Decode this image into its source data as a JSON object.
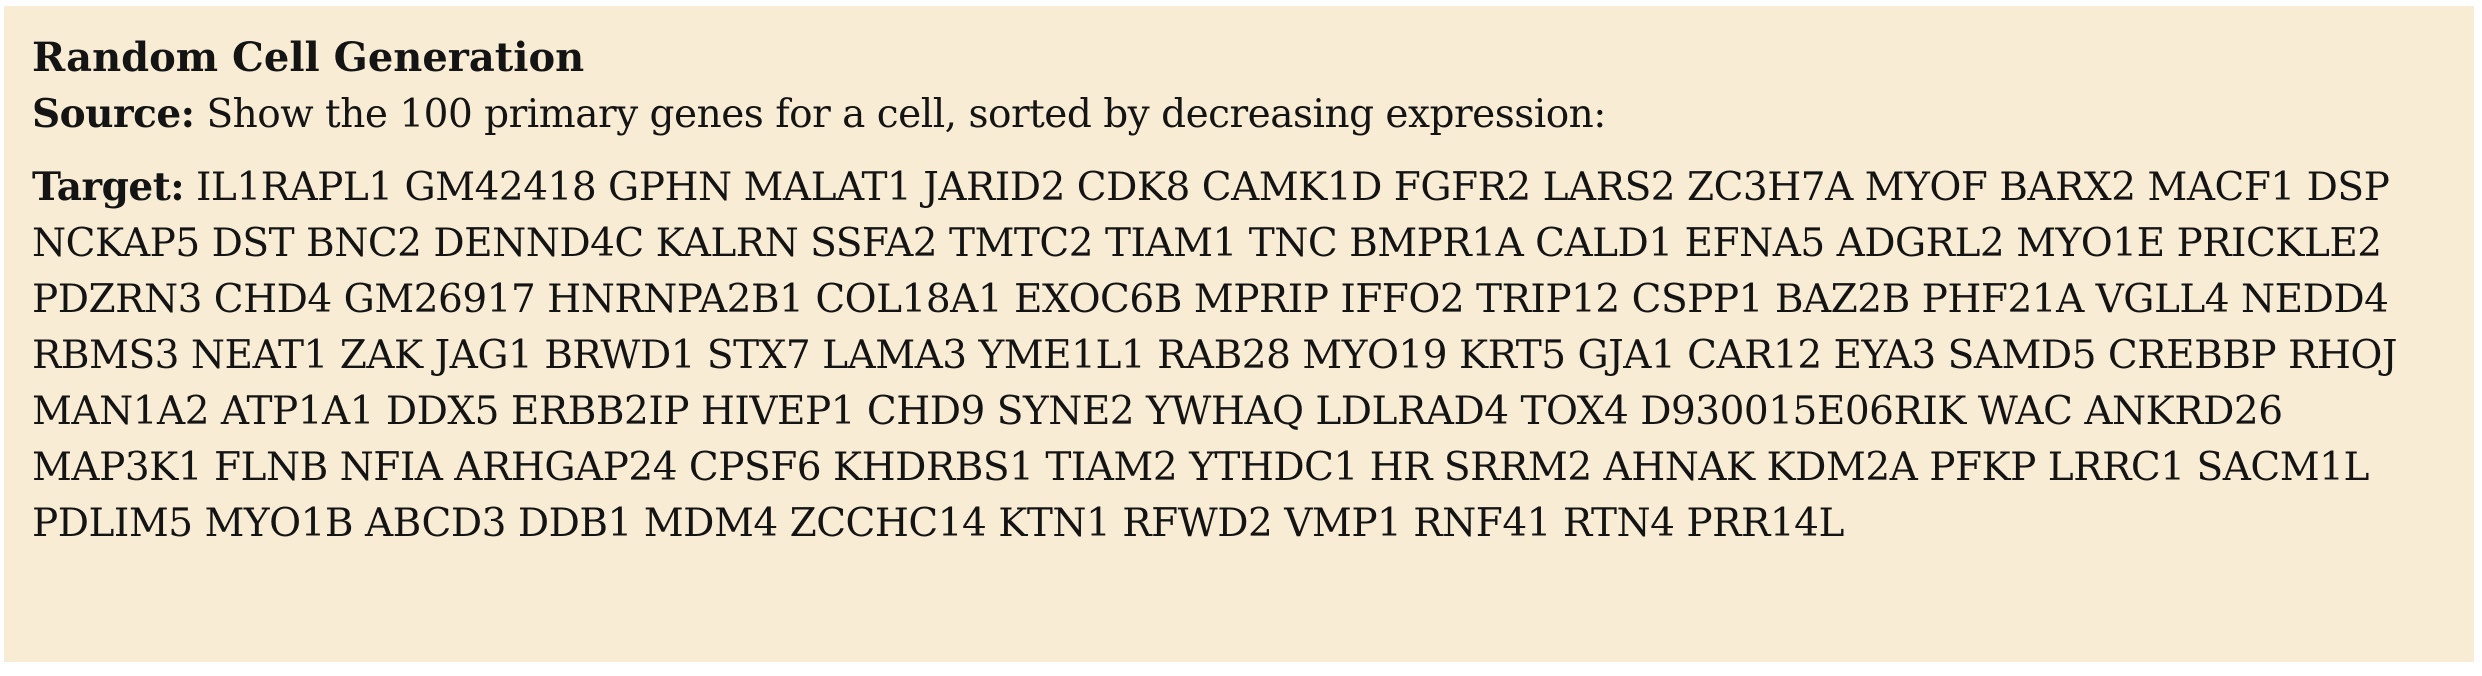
{
  "card": {
    "title": "Random Cell Generation",
    "source_label": "Source:",
    "source_text": "Show the 100 primary genes for a cell, sorted by decreasing expression:",
    "target_label": "Target:",
    "target_text": "IL1RAPL1 GM42418 GPHN MALAT1 JARID2 CDK8 CAMK1D FGFR2 LARS2 ZC3H7A MYOF BARX2 MACF1 DSP NCKAP5 DST BNC2 DENND4C KALRN SSFA2 TMTC2 TIAM1 TNC BMPR1A CALD1 EFNA5 ADGRL2 MYO1E PRICKLE2 PDZRN3 CHD4 GM26917 HNRNPA2B1 COL18A1 EXOC6B MPRIP IFFO2 TRIP12 CSPP1 BAZ2B PHF21A VGLL4 NEDD4 RBMS3 NEAT1 ZAK JAG1 BRWD1 STX7 LAMA3 YME1L1 RAB28 MYO19 KRT5 GJA1 CAR12 EYA3 SAMD5 CREBBP RHOJ MAN1A2 ATP1A1 DDX5 ERBB2IP HIVEP1 CHD9 SYNE2 YWHAQ LDLRAD4 TOX4 D930015E06RIK WAC ANKRD26 MAP3K1 FLNB NFIA ARHGAP24 CPSF6 KHDRBS1 TIAM2 YTHDC1 HR SRRM2 AHNAK KDM2A PFKP LRRC1 SACM1L PDLIM5 MYO1B ABCD3 DDB1 MDM4 ZCCHC14 KTN1 RFWD2 VMP1 RNF41 RTN4 PRR14L"
  }
}
